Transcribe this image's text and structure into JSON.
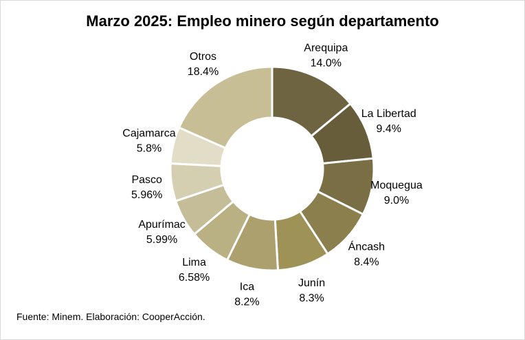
{
  "chart_data": {
    "type": "pie",
    "subtype": "donut",
    "title": "Marzo 2025: Empleo minero según departamento",
    "slices": [
      {
        "label": "Arequipa",
        "value_text": "14.0%",
        "value": 14.0,
        "color": "#6e6441"
      },
      {
        "label": "La Libertad",
        "value_text": "9.4%",
        "value": 9.4,
        "color": "#675d3a"
      },
      {
        "label": "Moquegua",
        "value_text": "9.0%",
        "value": 9.0,
        "color": "#7a6f44"
      },
      {
        "label": "Áncash",
        "value_text": "8.4%",
        "value": 8.4,
        "color": "#8a7f4d"
      },
      {
        "label": "Junín",
        "value_text": "8.3%",
        "value": 8.3,
        "color": "#9e9257"
      },
      {
        "label": "Ica",
        "value_text": "8.2%",
        "value": 8.2,
        "color": "#aca16e"
      },
      {
        "label": "Lima",
        "value_text": "6.58%",
        "value": 6.58,
        "color": "#b9b084"
      },
      {
        "label": "Apurímac",
        "value_text": "5.99%",
        "value": 5.99,
        "color": "#c5bd98"
      },
      {
        "label": "Pasco",
        "value_text": "5.96%",
        "value": 5.96,
        "color": "#d5cfb1"
      },
      {
        "label": "Cajamarca",
        "value_text": "5.8%",
        "value": 5.8,
        "color": "#e2ddc6"
      },
      {
        "label": "Otros",
        "value_text": "18.4%",
        "value": 18.4,
        "color": "#c7be96"
      }
    ],
    "legend": "none"
  },
  "source": "Fuente: Minem. Elaboración: CooperAcción."
}
